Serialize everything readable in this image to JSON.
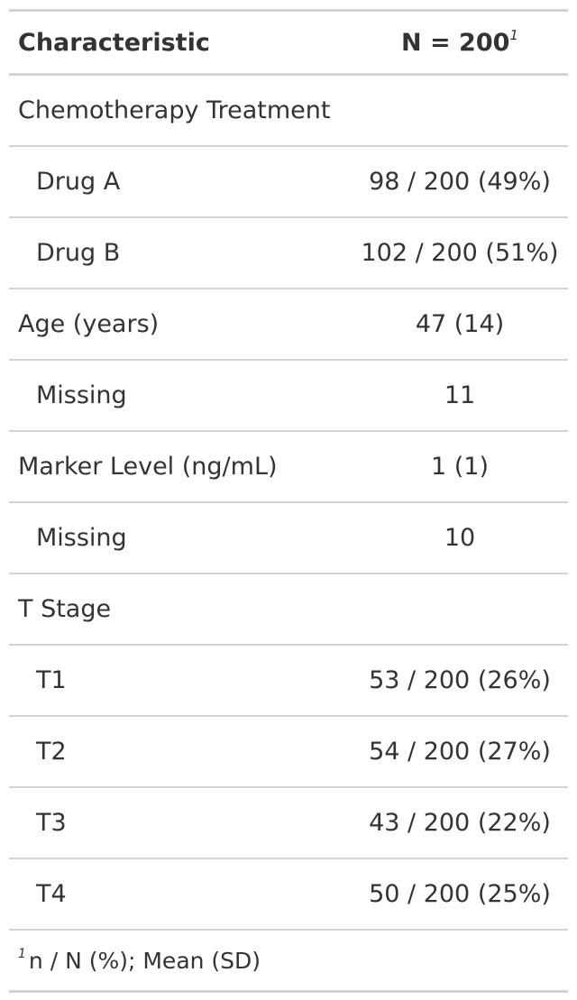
{
  "header": {
    "characteristic": "Characteristic",
    "n_label": "N = 200",
    "n_footnote_mark": "1"
  },
  "rows": [
    {
      "label": "Chemotherapy Treatment",
      "value": ""
    },
    {
      "label": "Drug A",
      "value": "98 / 200 (49%)"
    },
    {
      "label": "Drug B",
      "value": "102 / 200 (51%)"
    },
    {
      "label": "Age (years)",
      "value": "47 (14)"
    },
    {
      "label": "Missing",
      "value": "11"
    },
    {
      "label": "Marker Level (ng/mL)",
      "value": "1 (1)"
    },
    {
      "label": "Missing",
      "value": "10"
    },
    {
      "label": "T Stage",
      "value": ""
    },
    {
      "label": "T1",
      "value": "53 / 200 (26%)"
    },
    {
      "label": "T2",
      "value": "54 / 200 (27%)"
    },
    {
      "label": "T3",
      "value": "43 / 200 (22%)"
    },
    {
      "label": "T4",
      "value": "50 / 200 (25%)"
    }
  ],
  "footnote": {
    "mark": "1",
    "text": "n / N (%); Mean (SD)"
  }
}
